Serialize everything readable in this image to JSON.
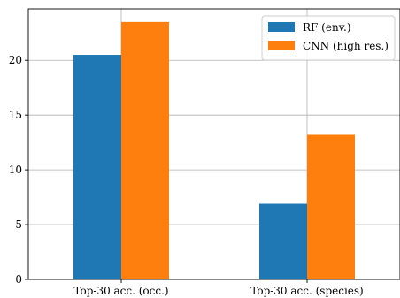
{
  "chart_data": {
    "type": "bar",
    "title": "",
    "xlabel": "",
    "ylabel": "",
    "categories": [
      "Top-30 acc. (occ.)",
      "Top-30 acc. (species)"
    ],
    "series": [
      {
        "name": "RF (env.)",
        "values": [
          20.5,
          6.9
        ],
        "color": "#1f77b4"
      },
      {
        "name": "CNN (high res.)",
        "values": [
          23.5,
          13.2
        ],
        "color": "#ff7f0e"
      }
    ],
    "ylim": [
      0,
      24.7
    ],
    "yticks": [
      0,
      5,
      10,
      15,
      20
    ],
    "ytick_labels": [
      "0",
      "5",
      "10",
      "15",
      "20"
    ],
    "grid": true,
    "legend_position": "top-right"
  }
}
